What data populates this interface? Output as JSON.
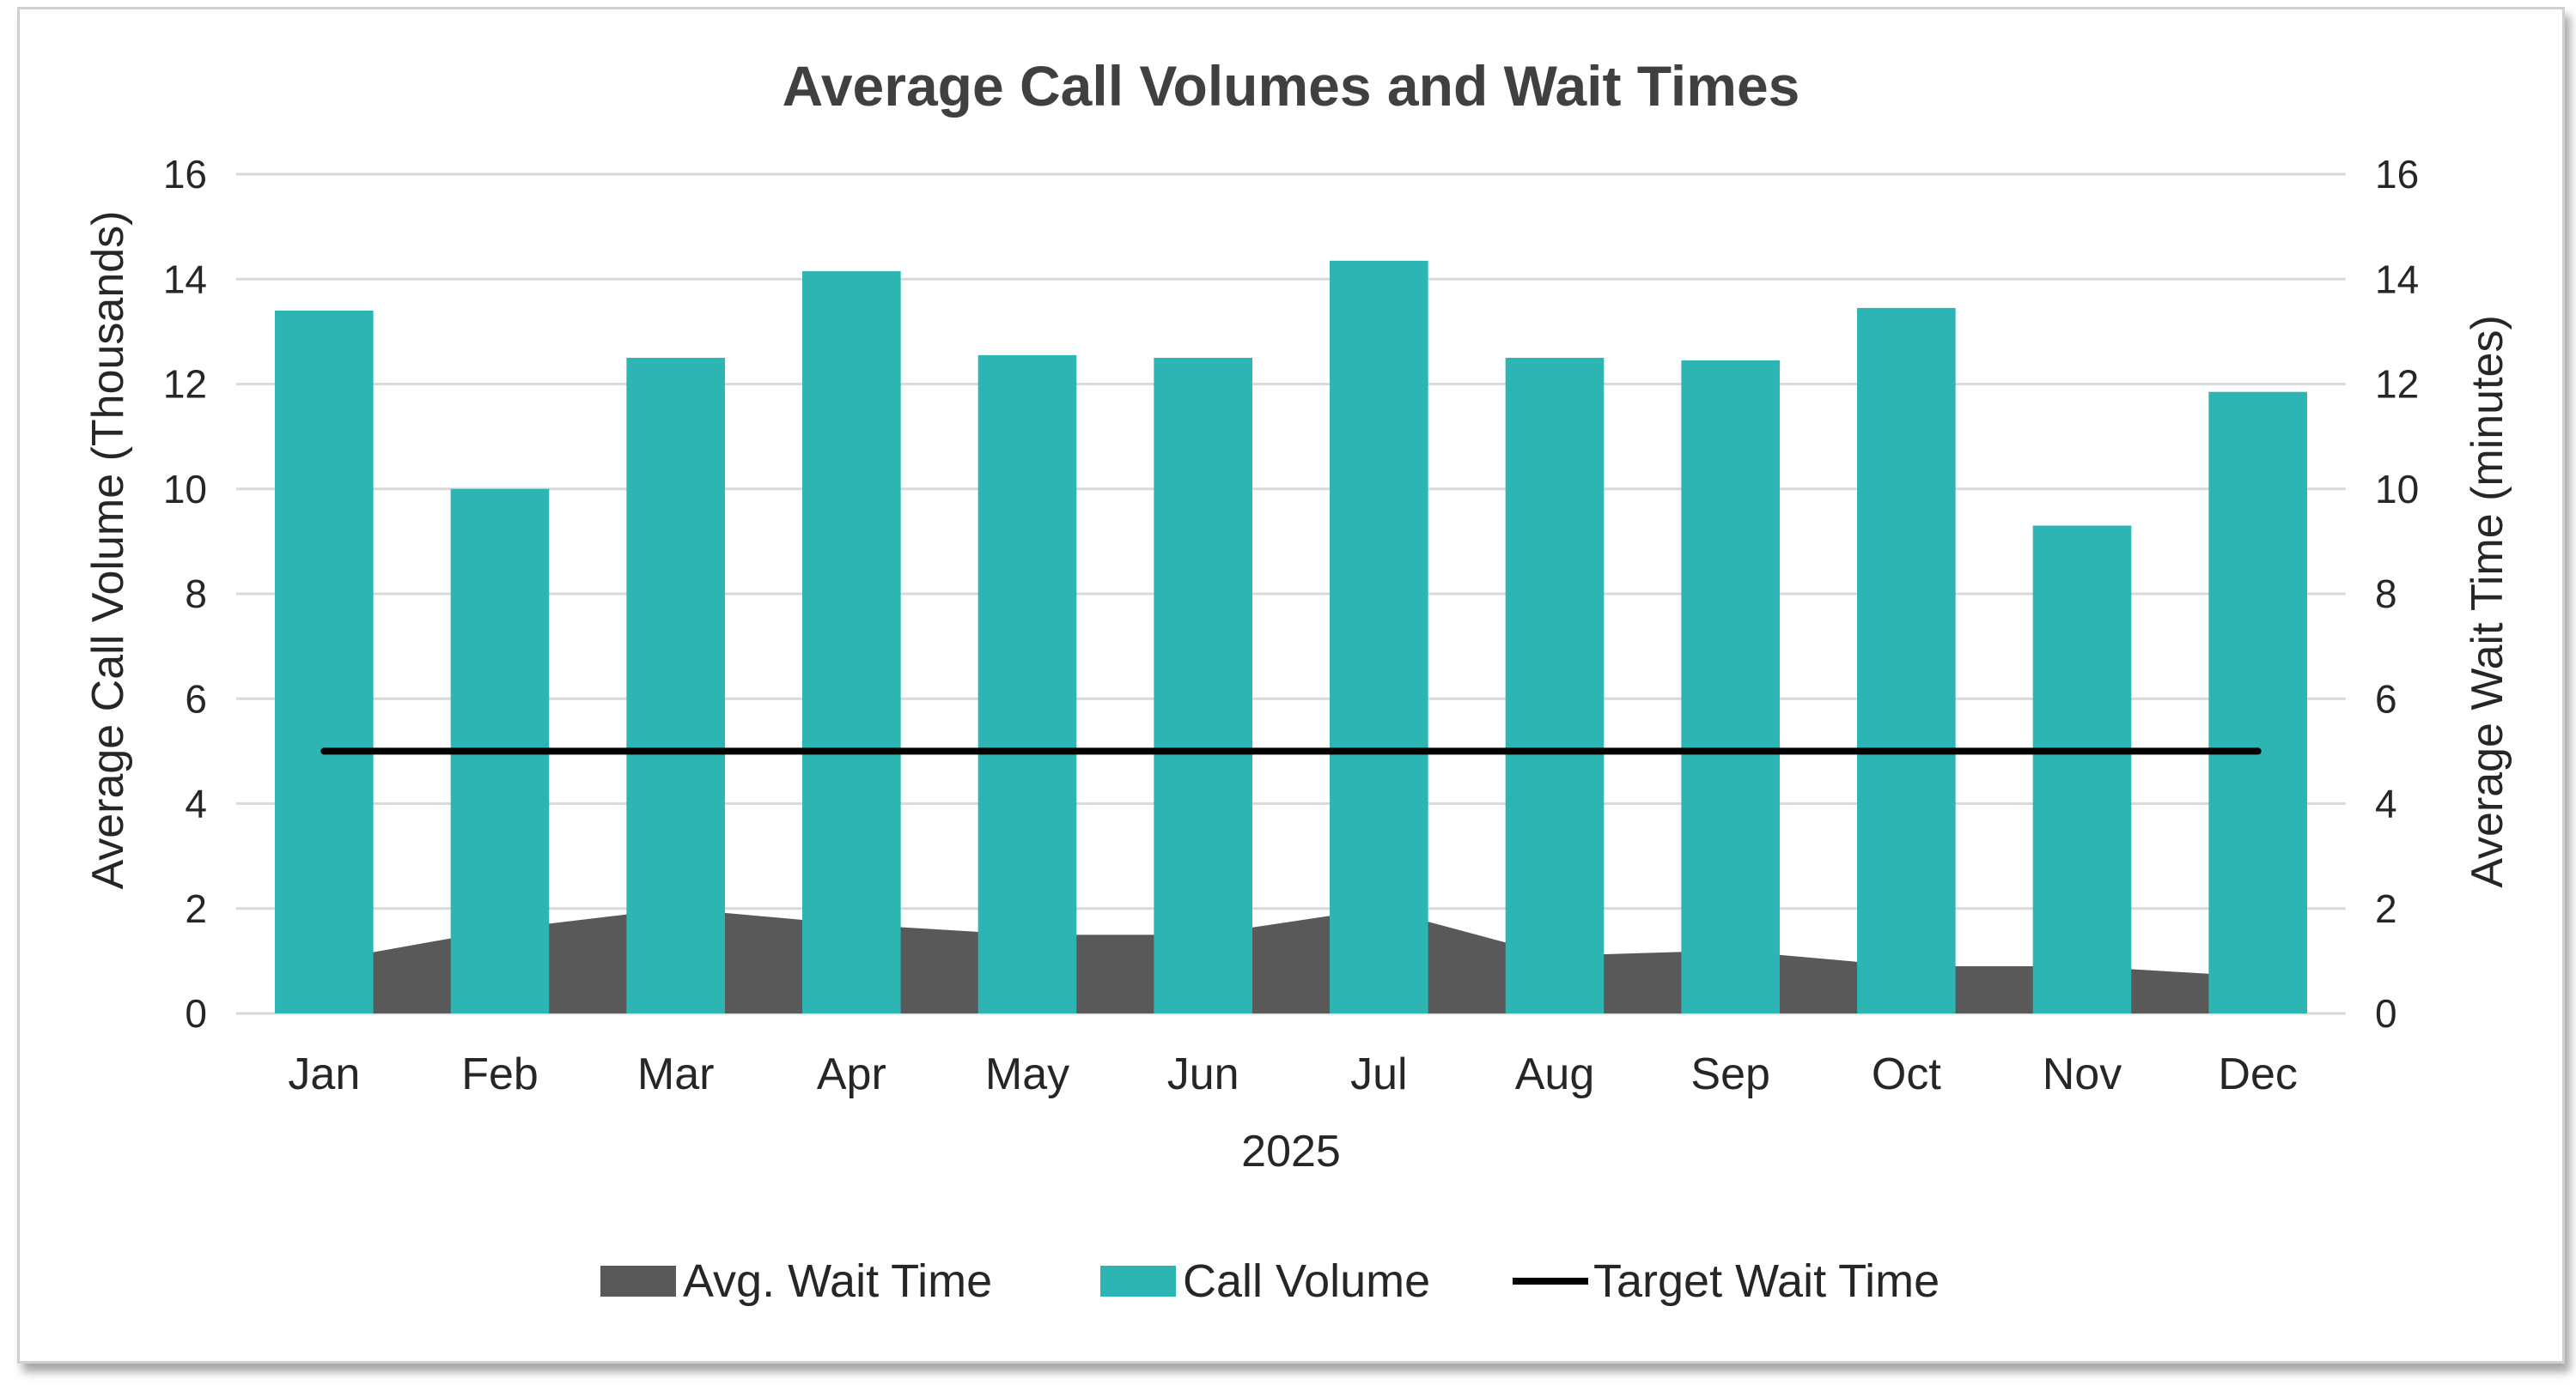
{
  "chart_data": {
    "type": "bar",
    "title": "Average Call Volumes and Wait Times",
    "xlabel": "2025",
    "ylabel": "Average Call Volume (Thousands)",
    "y2label": "Average Wait Time (minutes)",
    "categories": [
      "Jan",
      "Feb",
      "Mar",
      "Apr",
      "May",
      "Jun",
      "Jul",
      "Aug",
      "Sep",
      "Oct",
      "Nov",
      "Dec"
    ],
    "ylim": [
      0,
      16
    ],
    "y2lim": [
      0,
      16
    ],
    "yticks": [
      0,
      2,
      4,
      6,
      8,
      10,
      12,
      14,
      16
    ],
    "grid": true,
    "legend_position": "bottom",
    "series": [
      {
        "name": "Avg. Wait Time",
        "type": "area",
        "axis": "secondary",
        "color": "#595959",
        "values": [
          1.0,
          1.6,
          2.0,
          1.7,
          1.5,
          1.5,
          2.0,
          1.1,
          1.2,
          0.9,
          0.9,
          0.7
        ]
      },
      {
        "name": "Call Volume",
        "type": "bar",
        "axis": "primary",
        "color": "#2cb5b3",
        "values": [
          13.4,
          10.0,
          12.5,
          14.15,
          12.55,
          12.5,
          14.35,
          12.5,
          12.45,
          13.45,
          9.3,
          11.85
        ]
      },
      {
        "name": "Target Wait Time",
        "type": "line",
        "axis": "secondary",
        "color": "#000000",
        "values": [
          5,
          5,
          5,
          5,
          5,
          5,
          5,
          5,
          5,
          5,
          5,
          5
        ]
      }
    ]
  }
}
